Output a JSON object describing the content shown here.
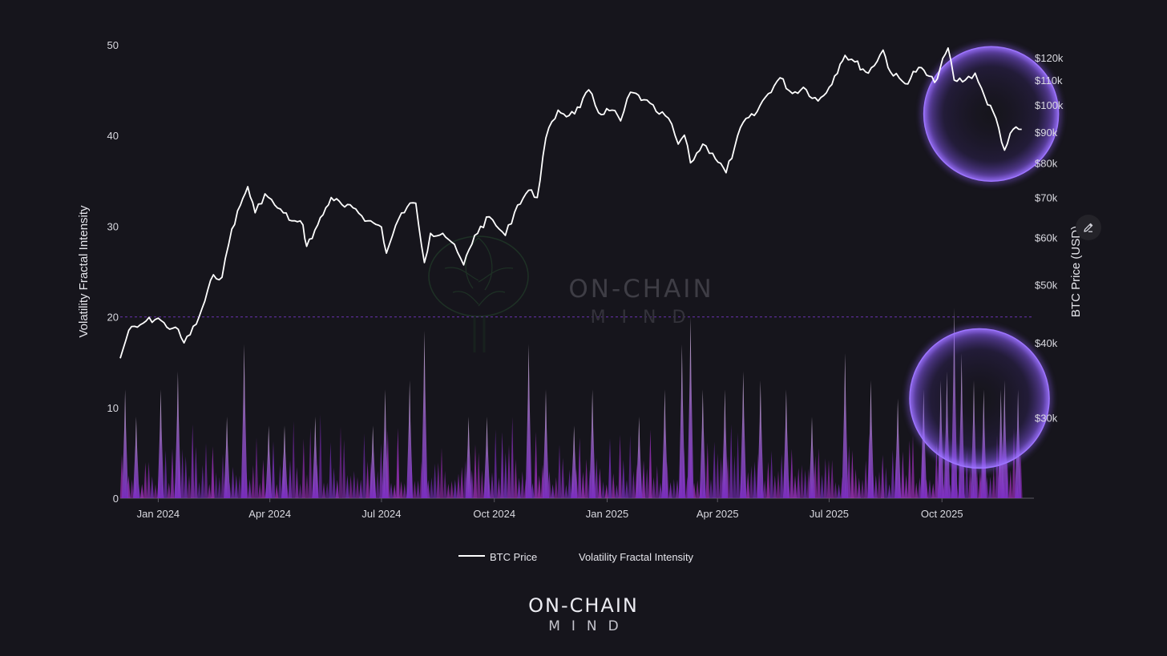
{
  "colors": {
    "background": "#16151c",
    "price_line": "#ffffff",
    "bar_low": "#7c2fc4",
    "bar_high": "#d7c6de",
    "highlight": "#8a5cf6",
    "threshold_line": "#6a32b0"
  },
  "icons": {
    "edit": "pencil-icon"
  },
  "watermark": {
    "main": "ON-CHAIN",
    "sub": "MIND"
  },
  "footer_logo": {
    "main": "ON-CHAIN",
    "sub": "MIND"
  },
  "chart_data": {
    "type": "line",
    "title": "",
    "xlabel": "",
    "ylabel_left": "Volatility Fractal Intensity",
    "ylabel_right": "BTC Price (USD)",
    "left_axis": {
      "range": [
        0,
        50
      ],
      "ticks": [
        0,
        10,
        20,
        30,
        40,
        50
      ],
      "tick_labels": [
        "0",
        "10",
        "20",
        "30",
        "40",
        "50"
      ]
    },
    "right_axis": {
      "scale": "log",
      "range": [
        22000,
        126000
      ],
      "ticks": [
        30000,
        40000,
        50000,
        60000,
        70000,
        80000,
        90000,
        100000,
        110000,
        120000
      ],
      "tick_labels": [
        "$30k",
        "$40k",
        "$50k",
        "$60k",
        "$70k",
        "$80k",
        "$90k",
        "$100k",
        "$110k",
        "$120k"
      ]
    },
    "x_axis": {
      "range": [
        "2023-12-01",
        "2025-12-15"
      ],
      "ticks": [
        "2024-01-01",
        "2024-04-01",
        "2024-07-01",
        "2024-10-01",
        "2025-01-01",
        "2025-04-01",
        "2025-07-01",
        "2025-10-01"
      ],
      "tick_labels": [
        "Jan 2024",
        "Apr 2024",
        "Jul 2024",
        "Oct 2024",
        "Jan 2025",
        "Apr 2025",
        "Jul 2025",
        "Oct 2025"
      ]
    },
    "threshold": 20,
    "grid": false,
    "legend_position": "bottom-center",
    "series": [
      {
        "name": "BTC Price",
        "type": "line",
        "axis": "right",
        "x": [
          "2023-12-01",
          "2023-12-08",
          "2023-12-15",
          "2023-12-22",
          "2024-01-01",
          "2024-01-08",
          "2024-01-15",
          "2024-01-22",
          "2024-02-01",
          "2024-02-08",
          "2024-02-15",
          "2024-02-22",
          "2024-03-01",
          "2024-03-08",
          "2024-03-14",
          "2024-03-20",
          "2024-03-28",
          "2024-04-05",
          "2024-04-12",
          "2024-04-19",
          "2024-04-28",
          "2024-05-01",
          "2024-05-10",
          "2024-05-21",
          "2024-06-01",
          "2024-06-10",
          "2024-06-20",
          "2024-07-01",
          "2024-07-05",
          "2024-07-15",
          "2024-07-22",
          "2024-07-29",
          "2024-08-05",
          "2024-08-10",
          "2024-08-20",
          "2024-08-27",
          "2024-09-06",
          "2024-09-15",
          "2024-09-27",
          "2024-10-05",
          "2024-10-10",
          "2024-10-20",
          "2024-10-29",
          "2024-11-05",
          "2024-11-12",
          "2024-11-22",
          "2024-12-01",
          "2024-12-10",
          "2024-12-17",
          "2024-12-25",
          "2025-01-05",
          "2025-01-12",
          "2025-01-20",
          "2025-01-31",
          "2025-02-10",
          "2025-02-20",
          "2025-02-28",
          "2025-03-05",
          "2025-03-10",
          "2025-03-20",
          "2025-03-28",
          "2025-04-08",
          "2025-04-15",
          "2025-04-22",
          "2025-05-01",
          "2025-05-10",
          "2025-05-22",
          "2025-06-01",
          "2025-06-10",
          "2025-06-22",
          "2025-07-01",
          "2025-07-10",
          "2025-07-14",
          "2025-07-22",
          "2025-08-02",
          "2025-08-14",
          "2025-08-20",
          "2025-09-01",
          "2025-09-12",
          "2025-09-25",
          "2025-10-06",
          "2025-10-11",
          "2025-10-20",
          "2025-10-28",
          "2025-11-05",
          "2025-11-14",
          "2025-11-21",
          "2025-11-28",
          "2025-12-05"
        ],
        "values": [
          37700,
          42000,
          42500,
          43500,
          44000,
          42500,
          42500,
          40000,
          43000,
          47000,
          52000,
          51500,
          62000,
          68000,
          73000,
          66000,
          71000,
          68000,
          66000,
          64000,
          63000,
          58000,
          63000,
          70000,
          67500,
          67000,
          64000,
          62500,
          56500,
          64500,
          67500,
          68500,
          54500,
          61000,
          61000,
          59000,
          54000,
          60500,
          65000,
          62000,
          60500,
          68000,
          72000,
          70000,
          88000,
          98000,
          96000,
          99000,
          106000,
          97000,
          98000,
          94000,
          105000,
          102000,
          97500,
          95000,
          86000,
          89000,
          80000,
          86000,
          83000,
          77000,
          85000,
          93500,
          96000,
          103000,
          111000,
          104500,
          107000,
          101500,
          107000,
          117000,
          121000,
          118000,
          113000,
          123500,
          113500,
          108500,
          115500,
          109000,
          124500,
          110000,
          110000,
          113000,
          103000,
          95000,
          84000,
          91000,
          91000
        ]
      },
      {
        "name": "Volatility Fractal Intensity",
        "type": "area",
        "axis": "left",
        "x": [
          "2023-12-05",
          "2023-12-14",
          "2024-01-03",
          "2024-01-17",
          "2024-02-26",
          "2024-03-11",
          "2024-03-31",
          "2024-04-13",
          "2024-05-08",
          "2024-06-24",
          "2024-07-04",
          "2024-07-24",
          "2024-08-05",
          "2024-09-10",
          "2024-09-25",
          "2024-10-29",
          "2024-11-12",
          "2024-12-05",
          "2024-12-20",
          "2025-01-27",
          "2025-02-17",
          "2025-03-03",
          "2025-03-10",
          "2025-03-20",
          "2025-04-07",
          "2025-04-22",
          "2025-05-06",
          "2025-05-27",
          "2025-06-17",
          "2025-07-14",
          "2025-08-04",
          "2025-08-26",
          "2025-09-16",
          "2025-09-30",
          "2025-10-05",
          "2025-10-11",
          "2025-10-17",
          "2025-10-27",
          "2025-11-04",
          "2025-11-18",
          "2025-11-21",
          "2025-12-02"
        ],
        "values": [
          12,
          9,
          12,
          14,
          9,
          17,
          8,
          8,
          9,
          8,
          12,
          13,
          18.5,
          9,
          9,
          17,
          12,
          8,
          12,
          9,
          12,
          17,
          20,
          12,
          12,
          14,
          13,
          12,
          9,
          16,
          13,
          11,
          12,
          13,
          14,
          21,
          16,
          13,
          12,
          12,
          13,
          12
        ]
      }
    ],
    "highlights": [
      {
        "series": "BTC Price",
        "from": "2025-10-01",
        "to": "2025-12-15"
      },
      {
        "series": "Volatility Fractal Intensity",
        "from": "2025-09-25",
        "to": "2025-12-15"
      }
    ]
  }
}
